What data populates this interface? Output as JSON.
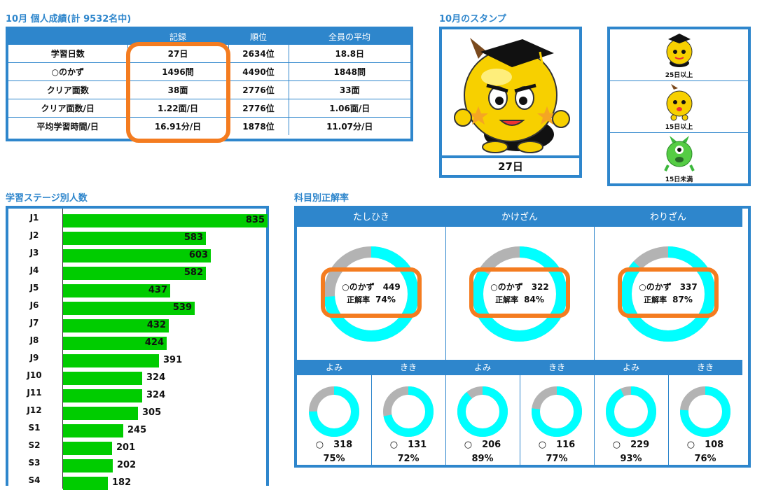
{
  "stats": {
    "title": "10月 個人成績(計 9532名中)",
    "headers": [
      "",
      "記録",
      "順位",
      "全員の平均"
    ],
    "rows": [
      [
        "学習日数",
        "27日",
        "2634位",
        "18.8日"
      ],
      [
        "○のかず",
        "1496問",
        "4490位",
        "1848問"
      ],
      [
        "クリア面数",
        "38面",
        "2776位",
        "33面"
      ],
      [
        "クリア面数/日",
        "1.22面/日",
        "2776位",
        "1.06面/日"
      ],
      [
        "平均学習時間/日",
        "16.91分/日",
        "1878位",
        "11.07分/日"
      ]
    ]
  },
  "stamp": {
    "title": "10月のスタンプ",
    "days": "27日",
    "legend": [
      "25日以上",
      "15日以上",
      "15日未満"
    ]
  },
  "stages": {
    "title": "学習ステージ別人数",
    "items": [
      {
        "label": "J1",
        "value": 835
      },
      {
        "label": "J2",
        "value": 583
      },
      {
        "label": "J3",
        "value": 603
      },
      {
        "label": "J4",
        "value": 582
      },
      {
        "label": "J5",
        "value": 437
      },
      {
        "label": "J6",
        "value": 539
      },
      {
        "label": "J7",
        "value": 432
      },
      {
        "label": "J8",
        "value": 424
      },
      {
        "label": "J9",
        "value": 391
      },
      {
        "label": "J10",
        "value": 324
      },
      {
        "label": "J11",
        "value": 324
      },
      {
        "label": "J12",
        "value": 305
      },
      {
        "label": "S1",
        "value": 245
      },
      {
        "label": "S2",
        "value": 201
      },
      {
        "label": "S3",
        "value": 202
      },
      {
        "label": "S4",
        "value": 182
      }
    ]
  },
  "subjects": {
    "title": "科目別正解率",
    "correct_label": "○のかず",
    "rate_label": "正解率",
    "items": [
      {
        "name": "たしひき",
        "count": "449",
        "rate": "74%",
        "rate_value": 74
      },
      {
        "name": "かけざん",
        "count": "322",
        "rate": "84%",
        "rate_value": 84
      },
      {
        "name": "わりざん",
        "count": "337",
        "rate": "87%",
        "rate_value": 87
      }
    ],
    "skills": [
      {
        "name": "よみ",
        "count": "318",
        "rate": "75%",
        "rate_value": 75
      },
      {
        "name": "きき",
        "count": "131",
        "rate": "72%",
        "rate_value": 72
      },
      {
        "name": "よみ",
        "count": "206",
        "rate": "89%",
        "rate_value": 89
      },
      {
        "name": "きき",
        "count": "116",
        "rate": "77%",
        "rate_value": 77
      },
      {
        "name": "よみ",
        "count": "229",
        "rate": "93%",
        "rate_value": 93
      },
      {
        "name": "きき",
        "count": "108",
        "rate": "76%",
        "rate_value": 76
      }
    ],
    "circle_symbol": "○"
  },
  "colors": {
    "accent": "#2e86cc",
    "highlight": "#f47c20",
    "bar": "#00cc00",
    "donut_fill": "#00ffff",
    "donut_rest": "#b3b3b3"
  }
}
